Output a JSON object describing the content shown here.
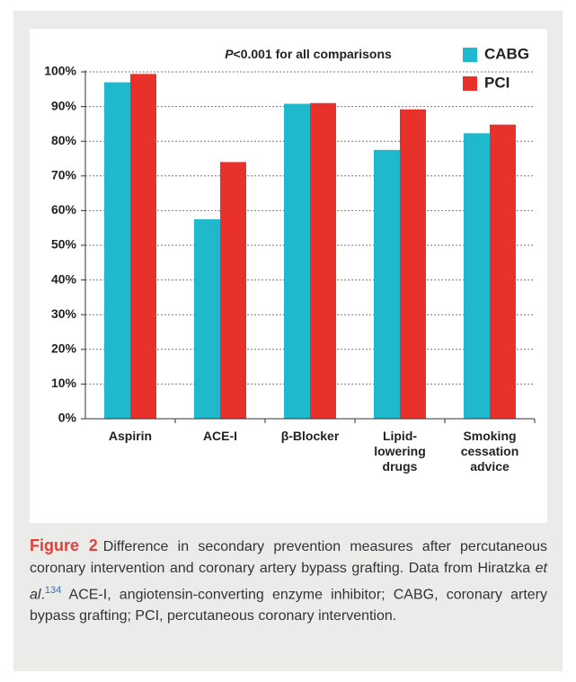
{
  "chart_data": {
    "type": "bar",
    "annotation": {
      "italic": "P",
      "text": "<0.001 for all comparisons"
    },
    "categories": [
      "Aspirin",
      "ACE-I",
      "β-Blocker",
      "Lipid-\nlowering\ndrugs",
      "Smoking\ncessation\nadvice"
    ],
    "series": [
      {
        "name": "CABG",
        "color": "#1fb8cc",
        "values": [
          97,
          57.5,
          90.8,
          77.5,
          82.3
        ]
      },
      {
        "name": "PCI",
        "color": "#e8312a",
        "values": [
          99.4,
          74,
          91,
          89.2,
          84.8
        ]
      }
    ],
    "ylim": [
      0,
      100
    ],
    "yticks": [
      {
        "value": 0,
        "label": "0%"
      },
      {
        "value": 10,
        "label": "10%"
      },
      {
        "value": 20,
        "label": "20%"
      },
      {
        "value": 30,
        "label": "30%"
      },
      {
        "value": 40,
        "label": "40%"
      },
      {
        "value": 50,
        "label": "50%"
      },
      {
        "value": 60,
        "label": "60%"
      },
      {
        "value": 70,
        "label": "70%"
      },
      {
        "value": 80,
        "label": "80%"
      },
      {
        "value": 90,
        "label": "90%"
      },
      {
        "value": 100,
        "label": "100%"
      }
    ],
    "grid": true
  },
  "caption": {
    "label": "Figure 2",
    "text_1": "Difference in secondary prevention measures after percutaneous coronary intervention and coronary artery bypass grafting. Data from Hiratzka ",
    "italic": "et al",
    "text_2": ".",
    "ref": "134",
    "text_3": " ACE-I, angiotensin-converting enzyme inhibitor; CABG, coronary artery bypass grafting; PCI, percutaneous coronary intervention."
  }
}
